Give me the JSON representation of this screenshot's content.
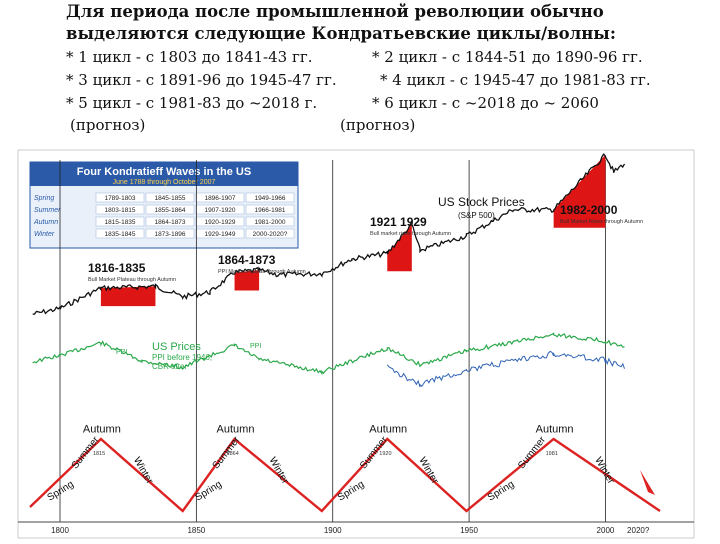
{
  "slide": {
    "title_line1": "Для периода после промышленной революции обычно",
    "title_line2": "выделяются следующие Кондратьевские циклы/волны:",
    "cycles": [
      {
        "text": "* 1 цикл - с 1803 до 1841-43 гг."
      },
      {
        "text": "* 2 цикл - с 1844-51 до 1890-96 гг."
      },
      {
        "text": "* 3 цикл - с 1891-96 до 1945-47 гг."
      },
      {
        "text": "* 4 цикл - с 1945-47 до 1981-83 гг."
      },
      {
        "text": "* 5 цикл - с 1981-83 до ~2018 г."
      },
      {
        "text": "* 6 цикл - с ~2018 до ~ 2060"
      }
    ],
    "forecast_left": "(прогноз)",
    "forecast_right": "(прогноз)"
  },
  "legend_box": {
    "title": "Four Kondratieff Waves in the US",
    "subtitle": "June 1788 through October 2007",
    "rows": [
      {
        "season": "Spring",
        "values": [
          "1789-1803",
          "1845-1855",
          "1896-1907",
          "1949-1966"
        ]
      },
      {
        "season": "Summer",
        "values": [
          "1803-1815",
          "1855-1864",
          "1907-1920",
          "1966-1981"
        ]
      },
      {
        "season": "Autumn",
        "values": [
          "1815-1835",
          "1864-1873",
          "1920-1929",
          "1981-2000"
        ]
      },
      {
        "season": "Winter",
        "values": [
          "1835-1845",
          "1873-1896",
          "1929-1949",
          "2000-2020?"
        ]
      }
    ]
  },
  "chart_data": {
    "type": "line",
    "x_ticks": [
      "1800",
      "1850",
      "1900",
      "1950",
      "2000",
      "2020?"
    ],
    "series_labels": {
      "stock": "US Stock Prices",
      "stock_sub": "(S&P 500)",
      "prices": "US Prices",
      "prices_sub": "PPI before 1946,",
      "prices_sub2": "CBR after",
      "ppi_left": "PPI",
      "ppi_right": "PPI"
    },
    "peaks": [
      {
        "label": "1816-1835",
        "note": "Bull Market Plateau through Autumn"
      },
      {
        "label": "1864-1873",
        "note": "PPI Market Plateau through Autumn"
      },
      {
        "label": "1921 1929",
        "note": "Bull market rises through Autumn"
      },
      {
        "label": "1982-2000",
        "note": "Bull Market Rises through Autumn"
      }
    ],
    "wave_seasons": [
      {
        "label": "Spring"
      },
      {
        "label": "Summer"
      },
      {
        "label": "Autumn"
      },
      {
        "label": "Winter"
      },
      {
        "label": "Spring"
      },
      {
        "label": "Summer"
      },
      {
        "label": "Autumn"
      },
      {
        "label": "Winter"
      },
      {
        "label": "Spring"
      },
      {
        "label": "Summer"
      },
      {
        "label": "Autumn"
      },
      {
        "label": "Winter"
      },
      {
        "label": "Spring"
      },
      {
        "label": "Summer"
      },
      {
        "label": "Autumn"
      },
      {
        "label": "Winter"
      }
    ],
    "wave_peak_years": [
      "1815",
      "1864",
      "1920",
      "1981"
    ],
    "stock_values": [
      {
        "year": 1790,
        "v": 0.1
      },
      {
        "year": 1800,
        "v": 0.2
      },
      {
        "year": 1815,
        "v": 0.55
      },
      {
        "year": 1835,
        "v": 0.58
      },
      {
        "year": 1845,
        "v": 0.4
      },
      {
        "year": 1855,
        "v": 0.48
      },
      {
        "year": 1864,
        "v": 0.82
      },
      {
        "year": 1873,
        "v": 0.86
      },
      {
        "year": 1880,
        "v": 0.78
      },
      {
        "year": 1896,
        "v": 0.8
      },
      {
        "year": 1907,
        "v": 1.05
      },
      {
        "year": 1920,
        "v": 1.15
      },
      {
        "year": 1929,
        "v": 1.65
      },
      {
        "year": 1932,
        "v": 1.2
      },
      {
        "year": 1949,
        "v": 1.45
      },
      {
        "year": 1966,
        "v": 1.9
      },
      {
        "year": 1981,
        "v": 1.9
      },
      {
        "year": 2000,
        "v": 2.85
      },
      {
        "year": 2003,
        "v": 2.55
      },
      {
        "year": 2007,
        "v": 2.7
      }
    ],
    "price_values": [
      {
        "year": 1790,
        "v": 0.6
      },
      {
        "year": 1800,
        "v": 0.72
      },
      {
        "year": 1815,
        "v": 0.95
      },
      {
        "year": 1830,
        "v": 0.62
      },
      {
        "year": 1845,
        "v": 0.5
      },
      {
        "year": 1864,
        "v": 0.9
      },
      {
        "year": 1873,
        "v": 0.65
      },
      {
        "year": 1896,
        "v": 0.42
      },
      {
        "year": 1920,
        "v": 0.85
      },
      {
        "year": 1932,
        "v": 0.55
      },
      {
        "year": 1949,
        "v": 0.8
      },
      {
        "year": 1981,
        "v": 1.1
      },
      {
        "year": 2000,
        "v": 0.98
      },
      {
        "year": 2007,
        "v": 0.85
      }
    ],
    "wave_values": [
      {
        "year": 1789,
        "v": 0.1
      },
      {
        "year": 1815,
        "v": 0.95
      },
      {
        "year": 1845,
        "v": 0.05
      },
      {
        "year": 1864,
        "v": 0.95
      },
      {
        "year": 1896,
        "v": 0.05
      },
      {
        "year": 1920,
        "v": 0.95
      },
      {
        "year": 1949,
        "v": 0.05
      },
      {
        "year": 1981,
        "v": 0.95
      },
      {
        "year": 2020,
        "v": 0.05
      }
    ]
  },
  "colors": {
    "stock": "#111111",
    "prices": "#2aa84a",
    "prices2": "#2f62b5",
    "peak": "#dd1515",
    "wave": "#dd2222",
    "legend_header": "#2a5aa8"
  }
}
